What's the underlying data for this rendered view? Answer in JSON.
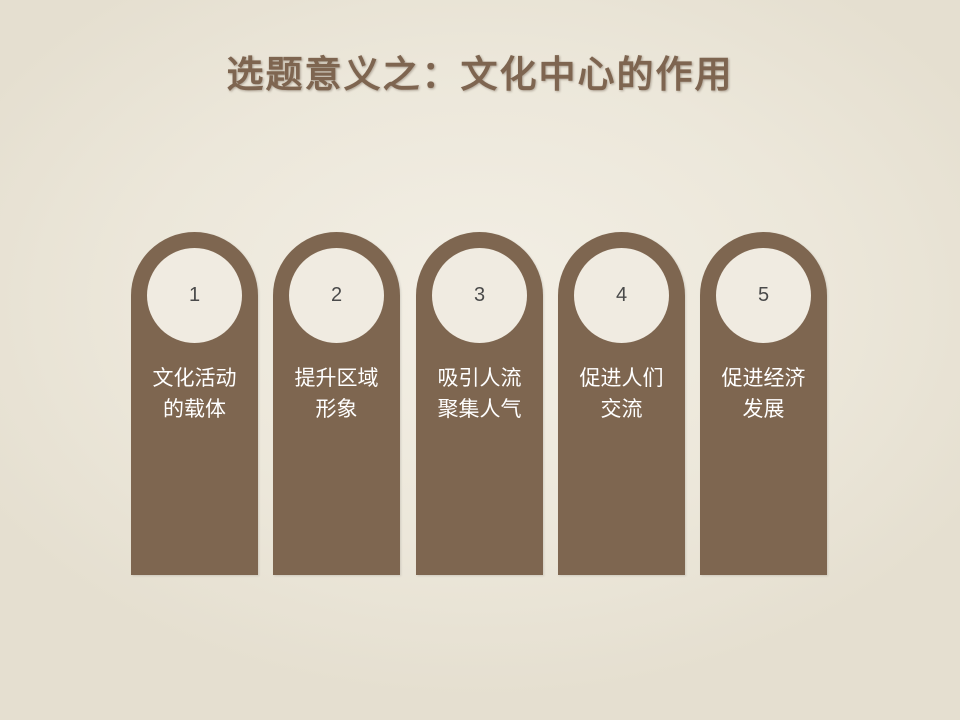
{
  "slide": {
    "title": "选题意义之：文化中心的作用"
  },
  "cards": [
    {
      "number": "1",
      "lines": [
        "文化活动",
        "的载体"
      ]
    },
    {
      "number": "2",
      "lines": [
        "提升区域",
        "形象"
      ]
    },
    {
      "number": "3",
      "lines": [
        "吸引人流",
        "聚集人气"
      ]
    },
    {
      "number": "4",
      "lines": [
        "促进人们",
        "交流"
      ]
    },
    {
      "number": "5",
      "lines": [
        "促进经济",
        "发展"
      ]
    }
  ],
  "colors": {
    "card": "#7e6650",
    "circle": "#f0ebe1",
    "title": "#7e6550",
    "background": "#ece7da"
  }
}
